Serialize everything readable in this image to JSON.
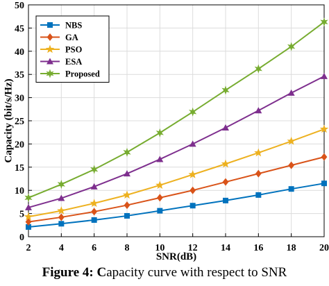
{
  "chart_data": {
    "type": "line",
    "xlabel": "SNR(dB)",
    "ylabel": "Capacity (bit/s/Hz)",
    "x": [
      2,
      4,
      6,
      8,
      10,
      12,
      14,
      16,
      18,
      20
    ],
    "xlim": [
      2,
      20
    ],
    "ylim": [
      0,
      50
    ],
    "xticks": [
      "2",
      "4",
      "6",
      "8",
      "10",
      "12",
      "14",
      "16",
      "18",
      "20"
    ],
    "yticks": [
      "0",
      "5",
      "10",
      "15",
      "20",
      "25",
      "30",
      "35",
      "40",
      "45",
      "50"
    ],
    "xtick_values": [
      2,
      4,
      6,
      8,
      10,
      12,
      14,
      16,
      18,
      20
    ],
    "ytick_values": [
      0,
      5,
      10,
      15,
      20,
      25,
      30,
      35,
      40,
      45,
      50
    ],
    "grid": true,
    "legend_position": "top-left",
    "series": [
      {
        "name": "NBS",
        "color": "#0072BD",
        "marker": "square",
        "values": [
          2.1,
          2.8,
          3.6,
          4.5,
          5.6,
          6.7,
          7.8,
          9.0,
          10.3,
          11.5
        ]
      },
      {
        "name": "GA",
        "color": "#D95319",
        "marker": "diamond",
        "values": [
          3.2,
          4.2,
          5.4,
          6.8,
          8.4,
          10.0,
          11.8,
          13.6,
          15.4,
          17.2
        ]
      },
      {
        "name": "PSO",
        "color": "#EDB120",
        "marker": "star",
        "values": [
          4.3,
          5.6,
          7.2,
          9.0,
          11.1,
          13.4,
          15.7,
          18.1,
          20.6,
          23.2
        ]
      },
      {
        "name": "ESA",
        "color": "#7E2F8E",
        "marker": "triangle",
        "values": [
          6.3,
          8.3,
          10.8,
          13.6,
          16.7,
          20.0,
          23.5,
          27.2,
          31.0,
          34.6
        ]
      },
      {
        "name": "Proposed",
        "color": "#77AC30",
        "marker": "star6",
        "values": [
          8.4,
          11.3,
          14.5,
          18.2,
          22.4,
          26.9,
          31.6,
          36.2,
          41.0,
          46.3
        ]
      }
    ]
  },
  "caption": {
    "bold_part": "Figure 4: C",
    "rest": "apacity curve with respect to SNR"
  }
}
